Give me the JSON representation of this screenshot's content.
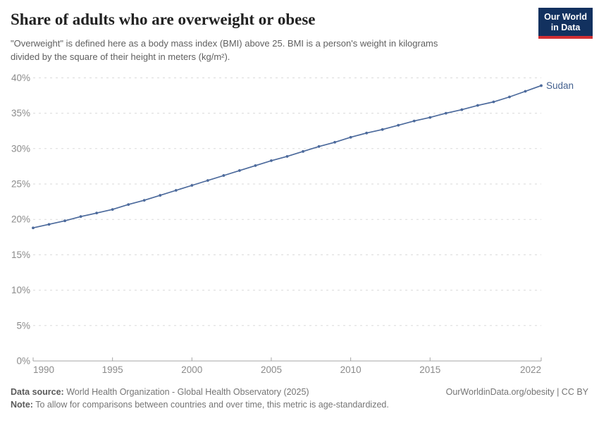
{
  "header": {
    "title": "Share of adults who are overweight or obese",
    "subtitle_line1": "\"Overweight\" is defined here as a body mass index (BMI) above 25. BMI is a person's weight in kilograms",
    "subtitle_line2": "divided by the square of their height in meters (kg/m²)."
  },
  "logo": {
    "line1": "Our World",
    "line2": "in Data"
  },
  "chart_data": {
    "type": "line",
    "title": "Share of adults who are overweight or obese",
    "entity": "Sudan",
    "x": [
      1990,
      1991,
      1992,
      1993,
      1994,
      1995,
      1996,
      1997,
      1998,
      1999,
      2000,
      2001,
      2002,
      2003,
      2004,
      2005,
      2006,
      2007,
      2008,
      2009,
      2010,
      2011,
      2012,
      2013,
      2014,
      2015,
      2016,
      2017,
      2018,
      2019,
      2020,
      2021,
      2022
    ],
    "values": [
      18.8,
      19.3,
      19.8,
      20.4,
      20.9,
      21.4,
      22.1,
      22.7,
      23.4,
      24.1,
      24.8,
      25.5,
      26.2,
      26.9,
      27.6,
      28.3,
      28.9,
      29.6,
      30.3,
      30.9,
      31.6,
      32.2,
      32.7,
      33.3,
      33.9,
      34.4,
      35.0,
      35.5,
      36.1,
      36.6,
      37.3,
      38.1,
      38.9
    ],
    "x_tick_years": [
      1990,
      1995,
      2000,
      2005,
      2010,
      2015,
      2022
    ],
    "x_tick_labels": [
      "1990",
      "1995",
      "2000",
      "2005",
      "2010",
      "2015",
      "2022"
    ],
    "y_tick_values": [
      0,
      5,
      10,
      15,
      20,
      25,
      30,
      35,
      40
    ],
    "y_tick_labels": [
      "0%",
      "5%",
      "10%",
      "15%",
      "20%",
      "25%",
      "30%",
      "35%",
      "40%"
    ],
    "xlim": [
      1990,
      2022
    ],
    "ylim": [
      0,
      40
    ],
    "grid": true,
    "legend_position": "end-of-line"
  },
  "footer": {
    "data_source_label": "Data source:",
    "data_source_text": " World Health Organization - Global Health Observatory (2025)",
    "link_text": "OurWorldinData.org/obesity | CC BY",
    "note_label": "Note:",
    "note_text": " To allow for comparisons between countries and over time, this metric is age-standardized."
  },
  "colors": {
    "line": "#4c6a9c",
    "entity_label": "#44618f",
    "grid": "#dadada",
    "axis": "#a6a6a6",
    "tick_text": "#8b8b8b",
    "logo_bg": "#12315f",
    "logo_red": "#d12f33"
  }
}
